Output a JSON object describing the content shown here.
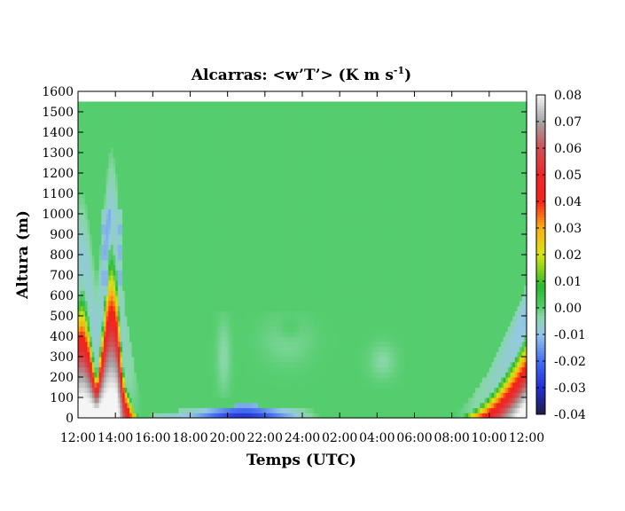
{
  "chart_data": {
    "type": "heatmap",
    "title_main": "Alcarras: <w’T’> (K m s",
    "title_sup": "-1",
    "title_close": ")",
    "xlabel": "Temps (UTC)",
    "ylabel": "Altura (m)",
    "x_ticks": [
      "12:00",
      "14:00",
      "16:00",
      "18:00",
      "20:00",
      "22:00",
      "24:00",
      "02:00",
      "04:00",
      "06:00",
      "08:00",
      "10:00",
      "12:00"
    ],
    "x_range_hours": [
      12,
      36
    ],
    "y_ticks": [
      "0",
      "100",
      "200",
      "300",
      "400",
      "500",
      "600",
      "700",
      "800",
      "900",
      "1000",
      "1100",
      "1200",
      "1300",
      "1400",
      "1500",
      "1600"
    ],
    "ylim": [
      0,
      1600
    ],
    "data_top_height": 1550,
    "colorbar": {
      "ticks": [
        "0.08",
        "0.07",
        "0.06",
        "0.05",
        "0.04",
        "0.03",
        "0.02",
        "0.01",
        "0.00",
        "-0.01",
        "-0.02",
        "-0.03",
        "-0.04"
      ],
      "range": [
        -0.04,
        0.08
      ]
    },
    "background_value": 0.0,
    "features": [
      {
        "name": "morning convective plume",
        "time_hours": [
          12,
          15.3
        ],
        "value_range": [
          -0.015,
          0.08
        ],
        "max_height_m": 1020
      },
      {
        "name": "nocturnal surface layer",
        "time_hours": [
          16,
          24.5
        ],
        "value_range": [
          -0.035,
          0.0
        ],
        "max_height_m": 70
      },
      {
        "name": "morning growth",
        "time_hours": [
          32.2,
          36
        ],
        "value_range": [
          -0.012,
          0.08
        ],
        "max_height_m": 580
      }
    ]
  }
}
